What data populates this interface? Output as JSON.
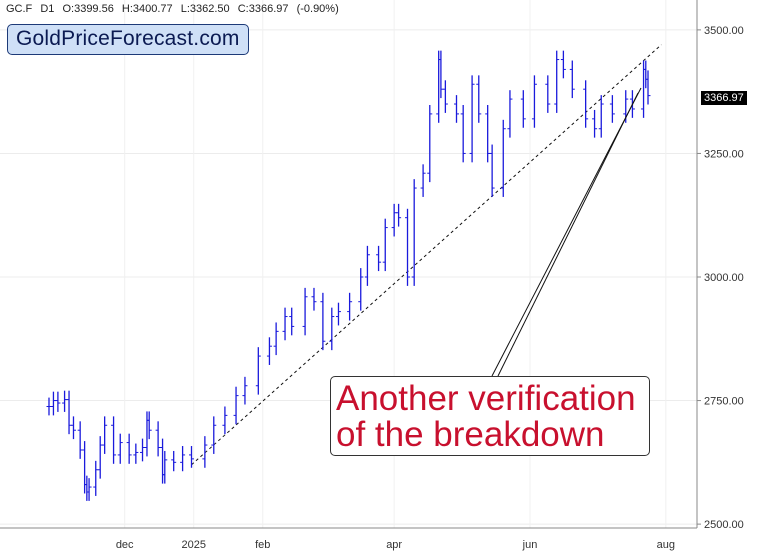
{
  "header": {
    "symbol": "GC.F",
    "timeframe": "D1",
    "open": "O:3399.56",
    "high": "H:3400.77",
    "low": "L:3362.50",
    "close": "C:3366.97",
    "change": "(-0.90%)"
  },
  "brand": {
    "label": "GoldPriceForecast.com"
  },
  "annotation": {
    "line1": "Another verification",
    "line2": "of the breakdown"
  },
  "last_price_label": "3366.97",
  "colors": {
    "bars": "#1a1adc",
    "annotation": "#c8102e",
    "support_line": "#111111",
    "arrow": "#111111"
  },
  "chart_data": {
    "type": "line",
    "style": "ohlc-bars",
    "series": [
      {
        "x": [
          "2024-10-28",
          "2024-10-30",
          "2024-11-01",
          "2024-11-04",
          "2024-11-06",
          "2024-11-08",
          "2024-11-11",
          "2024-11-13",
          "2024-11-14",
          "2024-11-15",
          "2024-11-18",
          "2024-11-20",
          "2024-11-22",
          "2024-11-26",
          "2024-11-29",
          "2024-12-03",
          "2024-12-06",
          "2024-12-09",
          "2024-12-11",
          "2024-12-12",
          "2024-12-16",
          "2024-12-18",
          "2024-12-19",
          "2024-12-23",
          "2024-12-27",
          "2024-12-31",
          "2025-01-06",
          "2025-01-10",
          "2025-01-15",
          "2025-01-20",
          "2025-01-24",
          "2025-01-30",
          "2025-02-04",
          "2025-02-07",
          "2025-02-11",
          "2025-02-14",
          "2025-02-20",
          "2025-02-24",
          "2025-02-28",
          "2025-03-04",
          "2025-03-07",
          "2025-03-12",
          "2025-03-17",
          "2025-03-20",
          "2025-03-25",
          "2025-03-28",
          "2025-04-01",
          "2025-04-03",
          "2025-04-07",
          "2025-04-10",
          "2025-04-14",
          "2025-04-17",
          "2025-04-21",
          "2025-04-22",
          "2025-04-24",
          "2025-04-29",
          "2025-05-02",
          "2025-05-06",
          "2025-05-09",
          "2025-05-13",
          "2025-05-15",
          "2025-05-20",
          "2025-05-23",
          "2025-05-29",
          "2025-06-03",
          "2025-06-09",
          "2025-06-13",
          "2025-06-16",
          "2025-06-20",
          "2025-06-26",
          "2025-06-30",
          "2025-07-03",
          "2025-07-08",
          "2025-07-14",
          "2025-07-17",
          "2025-07-22",
          "2025-07-23",
          "2025-07-24"
        ],
        "values": [
          2738,
          2750,
          2745,
          2752,
          2700,
          2690,
          2650,
          2580,
          2565,
          2575,
          2610,
          2660,
          2700,
          2640,
          2665,
          2640,
          2645,
          2655,
          2710,
          2690,
          2655,
          2600,
          2630,
          2625,
          2640,
          2632,
          2660,
          2700,
          2720,
          2760,
          2780,
          2840,
          2860,
          2890,
          2920,
          2900,
          2960,
          2950,
          2870,
          2920,
          2930,
          2950,
          3000,
          3045,
          3030,
          3100,
          3130,
          3120,
          3000,
          3180,
          3210,
          3330,
          3440,
          3380,
          3350,
          3330,
          3250,
          3390,
          3330,
          3250,
          3180,
          3300,
          3360,
          3320,
          3390,
          3350,
          3440,
          3420,
          3380,
          3320,
          3300,
          3350,
          3330,
          3360,
          3340,
          3420,
          3400,
          3367
        ]
      }
    ],
    "ylim": [
      2480,
      3520
    ],
    "y_ticks": [
      "3500.00",
      "3250.00",
      "3000.00",
      "2750.00",
      "2500.00"
    ],
    "x_ticks": [
      "dec",
      "2025",
      "feb",
      "apr",
      "jun",
      "aug"
    ],
    "support_line": {
      "x": [
        "2024-12-31",
        "2025-07-30"
      ],
      "y": [
        2620,
        3470
      ]
    },
    "last_price": 3366.97,
    "grid": true,
    "legend": "none"
  }
}
